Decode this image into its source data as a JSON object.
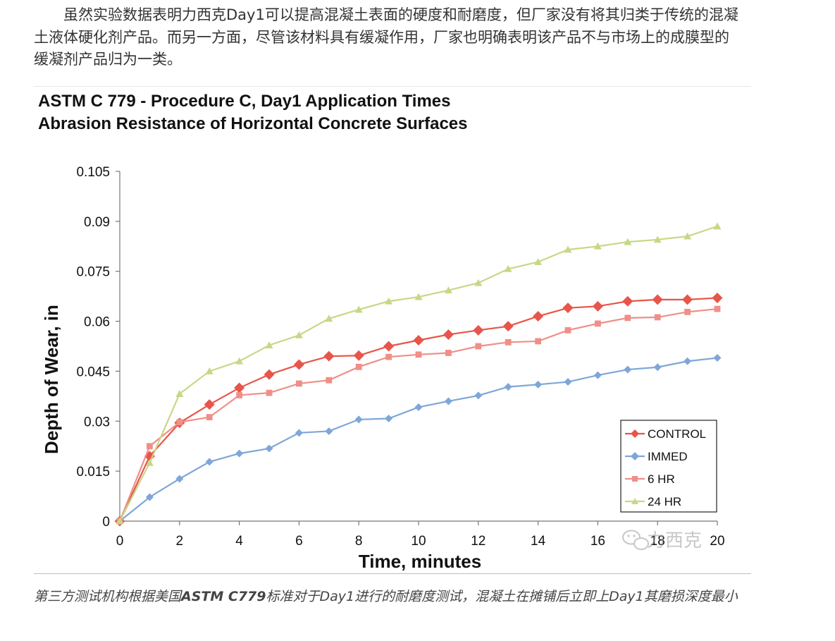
{
  "intro": {
    "paragraph": "虽然实验数据表明力西克Day1可以提高混凝土表面的硬度和耐磨度，但厂家没有将其归类于传统的混凝土液体硬化剂产品。而另一方面，尽管该材料具有缓凝作用，厂家也明确表明该产品不与市场上的成膜型的缓凝剂产品归为一类。"
  },
  "watermark": {
    "text": "力西克",
    "icon": "wechat-icon"
  },
  "caption": {
    "before": "第三方测试机构根据美国",
    "bold": "ASTM C779",
    "after": "标准对于Day1进行的耐磨度测试，混凝土在摊铺后立即上Day1其磨损深度最小"
  },
  "chart_data": {
    "type": "line",
    "title": "ASTM C 779 - Procedure C, Day1 Application Times",
    "subtitle": "Abrasion Resistance of Horizontal Concrete Surfaces",
    "xlabel": "Time, minutes",
    "ylabel": "Depth of Wear, in",
    "xlim": [
      0,
      20
    ],
    "ylim": [
      0,
      0.105
    ],
    "x_ticks": [
      "0",
      "2",
      "4",
      "6",
      "8",
      "10",
      "12",
      "14",
      "16",
      "18",
      "20"
    ],
    "y_ticks": [
      "0",
      "0.015",
      "0.03",
      "0.045",
      "0.06",
      "0.075",
      "0.09",
      "0.105"
    ],
    "grid": false,
    "legend_position": "bottom-right",
    "x": [
      0,
      1,
      2,
      3,
      4,
      5,
      6,
      7,
      8,
      9,
      10,
      11,
      12,
      13,
      14,
      15,
      16,
      17,
      18,
      19,
      20
    ],
    "series": [
      {
        "name": "CONTROL",
        "color": "#e8554a",
        "marker": "diamond",
        "values": [
          0,
          0.0195,
          0.0295,
          0.035,
          0.04,
          0.044,
          0.047,
          0.0495,
          0.0497,
          0.0525,
          0.0543,
          0.056,
          0.0573,
          0.0585,
          0.0615,
          0.064,
          0.0645,
          0.066,
          0.0665,
          0.0665,
          0.067
        ]
      },
      {
        "name": "IMMED",
        "color": "#7ea7d8",
        "marker": "diamond",
        "values": [
          0,
          0.0072,
          0.0127,
          0.0178,
          0.0203,
          0.0218,
          0.0265,
          0.027,
          0.0305,
          0.0308,
          0.0342,
          0.036,
          0.0377,
          0.0403,
          0.041,
          0.0418,
          0.0438,
          0.0455,
          0.0462,
          0.048,
          0.049
        ]
      },
      {
        "name": "6 HR",
        "color": "#ef8f88",
        "marker": "square",
        "values": [
          0,
          0.0225,
          0.0297,
          0.0312,
          0.0378,
          0.0385,
          0.0413,
          0.0423,
          0.0463,
          0.0493,
          0.05,
          0.0505,
          0.0525,
          0.0537,
          0.054,
          0.0573,
          0.0593,
          0.061,
          0.0612,
          0.0628,
          0.0637
        ]
      },
      {
        "name": "24 HR",
        "color": "#c6d886",
        "marker": "triangle",
        "values": [
          0,
          0.0175,
          0.0382,
          0.045,
          0.048,
          0.0528,
          0.0558,
          0.0608,
          0.0635,
          0.066,
          0.0673,
          0.0693,
          0.0715,
          0.0757,
          0.0778,
          0.0815,
          0.0825,
          0.0838,
          0.0845,
          0.0855,
          0.0885
        ]
      }
    ]
  }
}
